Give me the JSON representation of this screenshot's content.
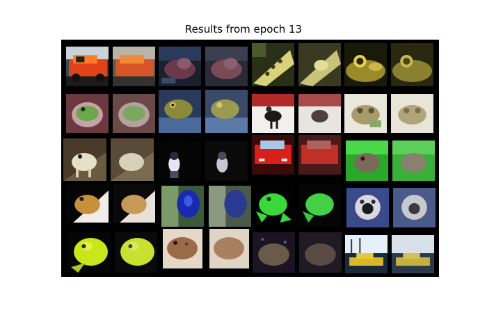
{
  "figure": {
    "title": "Results from epoch 13",
    "background": "#ffffff",
    "panel_background": "#000000"
  },
  "grid": {
    "rows": 5,
    "columns": 8,
    "pair_layout": "each image shown as original followed by a blurrier reconstruction",
    "tiles": [
      [
        "red-car-original",
        "red-car-reconstruction",
        "frog-dark-original",
        "frog-dark-reconstruction",
        "frog-yellow-spotted-original",
        "frog-yellow-spotted-reconstruction",
        "frog-eye-closeup-original",
        "frog-eye-closeup-reconstruction"
      ],
      [
        "green-frog-on-hand-original",
        "green-frog-on-hand-reconstruction",
        "frog-on-rock-original",
        "frog-on-rock-reconstruction",
        "horse-rider-original",
        "horse-rider-reconstruction",
        "frog-white-bg-original",
        "frog-white-bg-reconstruction"
      ],
      [
        "frog-brown-original",
        "frog-brown-reconstruction",
        "dog-dark-original",
        "dog-dark-reconstruction",
        "red-car-front-original",
        "red-car-front-reconstruction",
        "green-frog-leaves-original",
        "green-frog-leaves-reconstruction"
      ],
      [
        "frog-orange-original",
        "frog-orange-reconstruction",
        "blue-beetle-original",
        "blue-beetle-reconstruction",
        "green-frog-black-original",
        "green-frog-black-reconstruction",
        "frog-face-blue-original",
        "frog-face-blue-reconstruction"
      ],
      [
        "yellow-frog-original",
        "yellow-frog-reconstruction",
        "frog-sand-original",
        "frog-sand-reconstruction",
        "frog-night-original",
        "frog-night-reconstruction",
        "yellow-car-harbor-original",
        "yellow-car-harbor-reconstruction"
      ]
    ]
  }
}
